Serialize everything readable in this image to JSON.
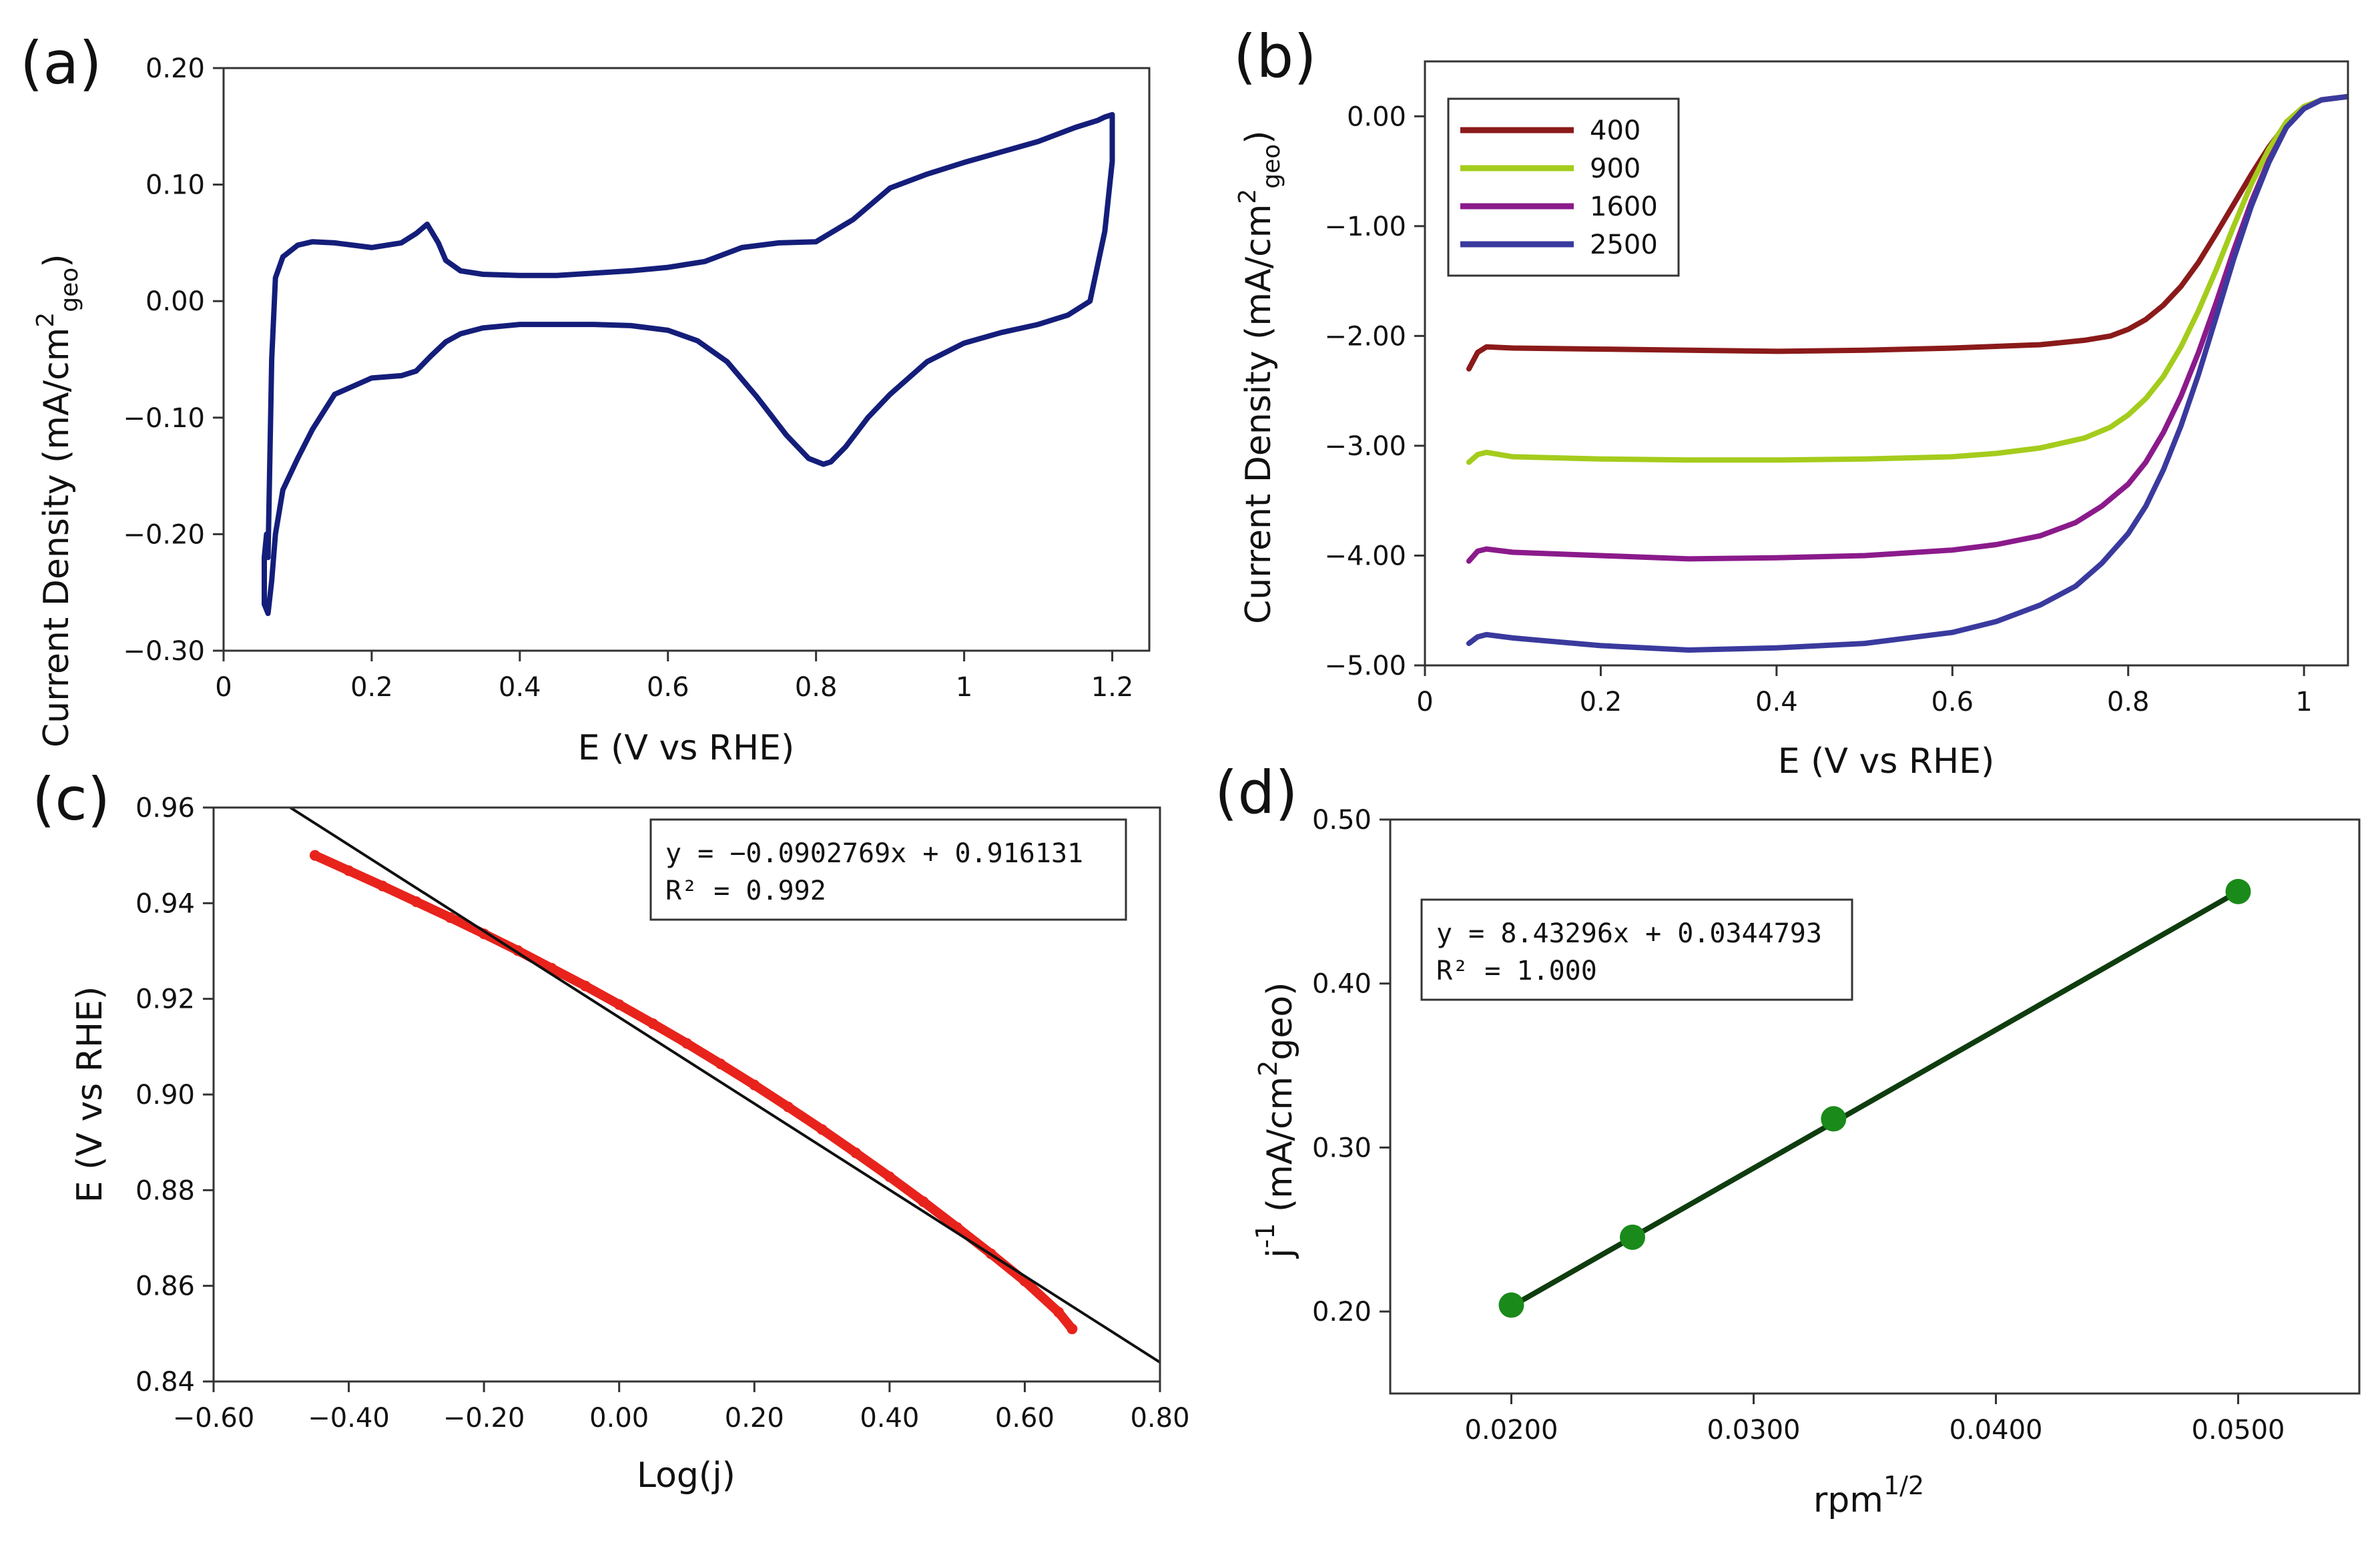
{
  "chart_data": [
    {
      "id": "a",
      "panel_label": "(a)",
      "type": "line",
      "xlabel": "E (V vs RHE)",
      "ylabel": "Current Density (mA/cm",
      "ylabel_sup": "2",
      "ylabel_sub": "geo",
      "ylabel_close": ")",
      "xlim": [
        0,
        1.25
      ],
      "ylim": [
        -0.3,
        0.2
      ],
      "xticks": [
        0,
        0.2,
        0.4,
        0.6,
        0.8,
        1,
        1.2
      ],
      "xtick_labels": [
        "0",
        "0.2",
        "0.4",
        "0.6",
        "0.8",
        "1",
        "1.2"
      ],
      "yticks": [
        -0.3,
        -0.2,
        -0.1,
        0,
        0.1,
        0.2
      ],
      "ytick_labels": [
        "−0.30",
        "−0.20",
        "−0.10",
        "0.00",
        "0.10",
        "0.20"
      ],
      "series": [
        {
          "name": "CV",
          "color": "#141e7a",
          "x": [
            0.06,
            0.065,
            0.07,
            0.08,
            0.1,
            0.12,
            0.15,
            0.2,
            0.24,
            0.26,
            0.275,
            0.29,
            0.3,
            0.32,
            0.35,
            0.4,
            0.45,
            0.5,
            0.55,
            0.6,
            0.65,
            0.7,
            0.75,
            0.8,
            0.85,
            0.9,
            0.95,
            1.0,
            1.05,
            1.1,
            1.15,
            1.18,
            1.19,
            1.2,
            1.2,
            1.19,
            1.17,
            1.14,
            1.1,
            1.05,
            1.0,
            0.95,
            0.9,
            0.87,
            0.84,
            0.82,
            0.81,
            0.79,
            0.76,
            0.72,
            0.68,
            0.64,
            0.6,
            0.55,
            0.5,
            0.45,
            0.4,
            0.35,
            0.32,
            0.3,
            0.28,
            0.26,
            0.24,
            0.2,
            0.15,
            0.12,
            0.1,
            0.08,
            0.07,
            0.065,
            0.06,
            0.055,
            0.055,
            0.058,
            0.06
          ],
          "y": [
            -0.22,
            -0.05,
            0.02,
            0.038,
            0.048,
            0.051,
            0.05,
            0.046,
            0.05,
            0.058,
            0.066,
            0.05,
            0.035,
            0.026,
            0.023,
            0.022,
            0.022,
            0.024,
            0.026,
            0.029,
            0.034,
            0.046,
            0.05,
            0.051,
            0.07,
            0.097,
            0.109,
            0.119,
            0.128,
            0.137,
            0.149,
            0.155,
            0.158,
            0.16,
            0.12,
            0.06,
            0.0,
            -0.012,
            -0.02,
            -0.027,
            -0.036,
            -0.052,
            -0.08,
            -0.1,
            -0.125,
            -0.138,
            -0.14,
            -0.135,
            -0.115,
            -0.082,
            -0.052,
            -0.034,
            -0.025,
            -0.021,
            -0.02,
            -0.02,
            -0.02,
            -0.023,
            -0.028,
            -0.035,
            -0.047,
            -0.06,
            -0.064,
            -0.066,
            -0.08,
            -0.11,
            -0.135,
            -0.162,
            -0.2,
            -0.24,
            -0.268,
            -0.26,
            -0.22,
            -0.2,
            -0.22
          ]
        }
      ]
    },
    {
      "id": "b",
      "panel_label": "(b)",
      "type": "line",
      "xlabel": "E (V vs RHE)",
      "ylabel": "Current Density (mA/cm",
      "ylabel_sup": "2",
      "ylabel_sub": "geo",
      "ylabel_close": ")",
      "xlim": [
        0,
        1.05
      ],
      "ylim": [
        -5.0,
        0.5
      ],
      "xticks": [
        0,
        0.2,
        0.4,
        0.6,
        0.8,
        1
      ],
      "xtick_labels": [
        "0",
        "0.2",
        "0.4",
        "0.6",
        "0.8",
        "1"
      ],
      "yticks": [
        -5,
        -4,
        -3,
        -2,
        -1,
        0
      ],
      "ytick_labels": [
        "−5.00",
        "−4.00",
        "−3.00",
        "−2.00",
        "−1.00",
        "0.00"
      ],
      "legend_position": "top-left",
      "series": [
        {
          "name": "400",
          "color": "#8b1a1a",
          "x": [
            0.05,
            0.06,
            0.07,
            0.1,
            0.2,
            0.3,
            0.4,
            0.5,
            0.6,
            0.7,
            0.75,
            0.78,
            0.8,
            0.82,
            0.84,
            0.86,
            0.88,
            0.9,
            0.92,
            0.94,
            0.96,
            0.98,
            1.0,
            1.02,
            1.04,
            1.05
          ],
          "y": [
            -2.3,
            -2.15,
            -2.1,
            -2.11,
            -2.12,
            -2.13,
            -2.14,
            -2.13,
            -2.11,
            -2.08,
            -2.04,
            -2.0,
            -1.94,
            -1.85,
            -1.72,
            -1.55,
            -1.33,
            -1.07,
            -0.8,
            -0.53,
            -0.28,
            -0.07,
            0.08,
            0.15,
            0.17,
            0.18
          ]
        },
        {
          "name": "900",
          "color": "#a4cc1c",
          "x": [
            0.05,
            0.06,
            0.07,
            0.1,
            0.2,
            0.3,
            0.4,
            0.5,
            0.6,
            0.65,
            0.7,
            0.75,
            0.78,
            0.8,
            0.82,
            0.84,
            0.86,
            0.88,
            0.9,
            0.92,
            0.94,
            0.96,
            0.98,
            1.0,
            1.02,
            1.04,
            1.05
          ],
          "y": [
            -3.15,
            -3.08,
            -3.06,
            -3.1,
            -3.12,
            -3.13,
            -3.13,
            -3.12,
            -3.1,
            -3.07,
            -3.02,
            -2.93,
            -2.83,
            -2.72,
            -2.57,
            -2.37,
            -2.1,
            -1.77,
            -1.4,
            -1.0,
            -0.62,
            -0.3,
            -0.05,
            0.09,
            0.15,
            0.17,
            0.18
          ]
        },
        {
          "name": "1600",
          "color": "#8b1a8b",
          "x": [
            0.05,
            0.06,
            0.07,
            0.1,
            0.2,
            0.3,
            0.4,
            0.5,
            0.6,
            0.65,
            0.7,
            0.74,
            0.77,
            0.8,
            0.82,
            0.84,
            0.86,
            0.88,
            0.9,
            0.92,
            0.94,
            0.96,
            0.98,
            1.0,
            1.02,
            1.04,
            1.05
          ],
          "y": [
            -4.05,
            -3.96,
            -3.94,
            -3.97,
            -4.0,
            -4.03,
            -4.02,
            -4.0,
            -3.95,
            -3.9,
            -3.82,
            -3.7,
            -3.55,
            -3.35,
            -3.15,
            -2.88,
            -2.55,
            -2.15,
            -1.7,
            -1.22,
            -0.78,
            -0.4,
            -0.1,
            0.07,
            0.15,
            0.17,
            0.18
          ]
        },
        {
          "name": "2500",
          "color": "#3a3a9e",
          "x": [
            0.05,
            0.06,
            0.07,
            0.1,
            0.2,
            0.3,
            0.4,
            0.5,
            0.6,
            0.65,
            0.7,
            0.74,
            0.77,
            0.8,
            0.82,
            0.84,
            0.86,
            0.88,
            0.9,
            0.92,
            0.94,
            0.96,
            0.98,
            1.0,
            1.02,
            1.04,
            1.05
          ],
          "y": [
            -4.8,
            -4.74,
            -4.72,
            -4.75,
            -4.82,
            -4.86,
            -4.84,
            -4.8,
            -4.7,
            -4.6,
            -4.45,
            -4.28,
            -4.07,
            -3.8,
            -3.55,
            -3.22,
            -2.82,
            -2.35,
            -1.83,
            -1.3,
            -0.82,
            -0.42,
            -0.1,
            0.07,
            0.15,
            0.17,
            0.18
          ]
        }
      ]
    },
    {
      "id": "c",
      "panel_label": "(c)",
      "type": "scatter",
      "xlabel": "Log(j)",
      "ylabel": "E (V vs RHE)",
      "xlim": [
        -0.6,
        0.8
      ],
      "ylim": [
        0.84,
        0.96
      ],
      "xticks": [
        -0.6,
        -0.4,
        -0.2,
        0,
        0.2,
        0.4,
        0.6,
        0.8
      ],
      "xtick_labels": [
        "−0.60",
        "−0.40",
        "−0.20",
        "0.00",
        "0.20",
        "0.40",
        "0.60",
        "0.80"
      ],
      "yticks": [
        0.84,
        0.86,
        0.88,
        0.9,
        0.92,
        0.94,
        0.96
      ],
      "ytick_labels": [
        "0.84",
        "0.86",
        "0.88",
        "0.90",
        "0.92",
        "0.94",
        "0.96"
      ],
      "series": [
        {
          "name": "data",
          "color": "#e8231c",
          "x": [
            -0.45,
            -0.4,
            -0.35,
            -0.3,
            -0.25,
            -0.2,
            -0.15,
            -0.1,
            -0.05,
            0.0,
            0.05,
            0.1,
            0.15,
            0.2,
            0.25,
            0.3,
            0.35,
            0.4,
            0.45,
            0.5,
            0.55,
            0.6,
            0.65,
            0.67
          ],
          "y": [
            0.95,
            0.9468,
            0.9436,
            0.9403,
            0.937,
            0.9336,
            0.9301,
            0.9264,
            0.9227,
            0.9188,
            0.9148,
            0.9107,
            0.9064,
            0.902,
            0.8974,
            0.8927,
            0.8878,
            0.8828,
            0.8776,
            0.8722,
            0.8667,
            0.861,
            0.8545,
            0.851
          ]
        },
        {
          "name": "fit",
          "color": "#111111",
          "x": [
            -0.49,
            0.8
          ],
          "y": [
            0.9603,
            0.844
          ]
        }
      ],
      "annotation": {
        "line1": "y = −0.0902769x + 0.916131",
        "line2": "R² = 0.992"
      }
    },
    {
      "id": "d",
      "panel_label": "(d)",
      "type": "scatter",
      "xlabel": "rpm",
      "xlabel_sup": "1/2",
      "ylabel": "j",
      "ylabel_sup": "-1",
      "ylabel_rest": " (mA/cm",
      "ylabel_sup2": "2",
      "ylabel_end": "geo)",
      "xlim": [
        0.015,
        0.055
      ],
      "ylim": [
        0.15,
        0.5
      ],
      "xticks": [
        0.02,
        0.03,
        0.04,
        0.05
      ],
      "xtick_labels": [
        "0.0200",
        "0.0300",
        "0.0400",
        "0.0500"
      ],
      "yticks": [
        0.2,
        0.3,
        0.4,
        0.5
      ],
      "ytick_labels": [
        "0.20",
        "0.30",
        "0.40",
        "0.50"
      ],
      "series": [
        {
          "name": "points",
          "color": "#1a8a1a",
          "x": [
            0.02,
            0.025,
            0.0333,
            0.05
          ],
          "y": [
            0.2039,
            0.2453,
            0.3175,
            0.4561
          ]
        },
        {
          "name": "fit",
          "color": "#0f3d0f",
          "x": [
            0.02,
            0.05
          ],
          "y": [
            0.2031,
            0.4561
          ]
        }
      ],
      "annotation": {
        "line1": "y = 8.43296x + 0.0344793",
        "line2": "R² = 1.000"
      }
    }
  ]
}
